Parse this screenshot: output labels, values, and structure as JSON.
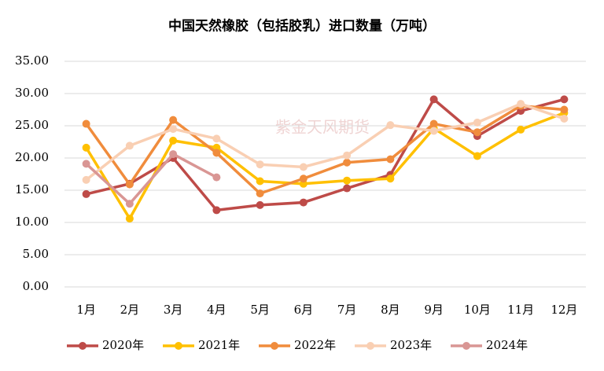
{
  "chart_data": {
    "type": "line",
    "title": "中国天然橡胶（包括胶乳）进口数量（万吨）",
    "watermark": "紫金天风期货",
    "categories": [
      "1月",
      "2月",
      "3月",
      "4月",
      "5月",
      "6月",
      "7月",
      "8月",
      "9月",
      "10月",
      "11月",
      "12月"
    ],
    "ylim": [
      0,
      35
    ],
    "yticks": [
      {
        "value": 0,
        "label": "0.00"
      },
      {
        "value": 5,
        "label": "5.00"
      },
      {
        "value": 10,
        "label": "10.00"
      },
      {
        "value": 15,
        "label": "15.00"
      },
      {
        "value": 20,
        "label": "20.00"
      },
      {
        "value": 25,
        "label": "25.00"
      },
      {
        "value": 30,
        "label": "30.00"
      },
      {
        "value": 35,
        "label": "35.00"
      }
    ],
    "grid": true,
    "legend": "bottom",
    "series": [
      {
        "name": "2020年",
        "color": "#be4b48",
        "values": [
          14.4,
          16.0,
          20.0,
          11.9,
          12.7,
          13.1,
          15.3,
          17.4,
          29.1,
          23.4,
          27.3,
          29.1
        ]
      },
      {
        "name": "2021年",
        "color": "#ffc000",
        "values": [
          21.6,
          10.6,
          22.7,
          21.6,
          16.4,
          16.0,
          16.5,
          16.8,
          24.6,
          20.3,
          24.4,
          27.0
        ]
      },
      {
        "name": "2022年",
        "color": "#f08c3c",
        "values": [
          25.3,
          15.9,
          25.9,
          20.8,
          14.5,
          16.8,
          19.3,
          19.8,
          25.3,
          24.0,
          28.1,
          27.5
        ]
      },
      {
        "name": "2023年",
        "color": "#f9cfb3",
        "values": [
          16.6,
          21.9,
          24.5,
          23.0,
          19.0,
          18.6,
          20.4,
          25.1,
          24.2,
          25.5,
          28.4,
          26.1
        ]
      },
      {
        "name": "2024年",
        "color": "#d99694",
        "values": [
          19.1,
          12.9,
          20.6,
          17.0,
          null,
          null,
          null,
          null,
          null,
          null,
          null,
          null
        ]
      }
    ]
  }
}
